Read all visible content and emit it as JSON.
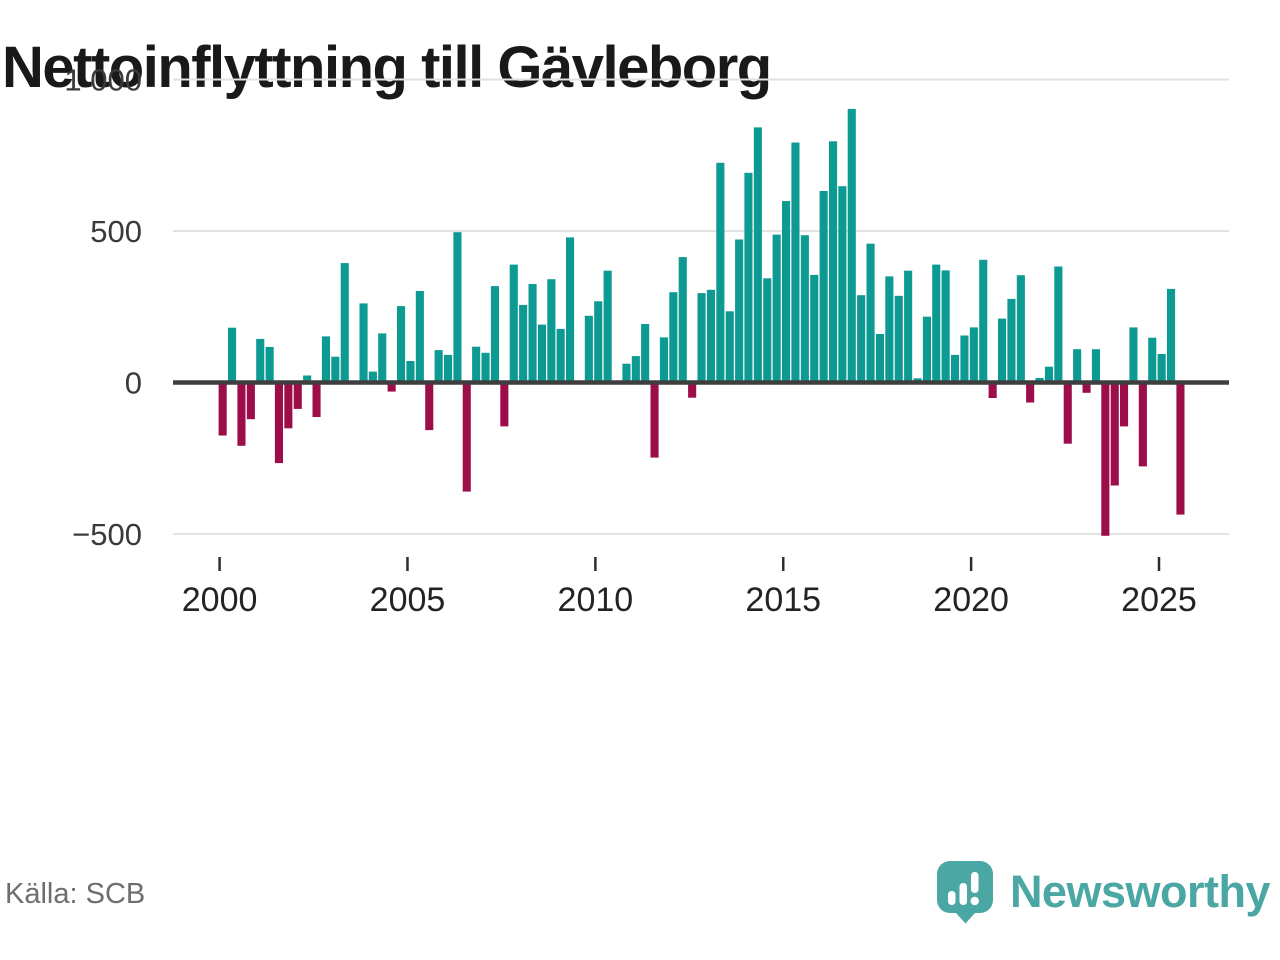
{
  "title": "Nettoinflyttning till Gävleborg",
  "source": "Källa: SCB",
  "brand": {
    "name": "Newsworthy",
    "icon": "speech-bubble-bar-chart-icon",
    "color": "#4ba7a3"
  },
  "colors": {
    "positive_bar": "#0c9a92",
    "negative_bar": "#9c0d49",
    "axis": "#3e3e3e",
    "gridline": "#e2e2e2",
    "tick_text": "#2e2e2e",
    "title_text": "#191919",
    "source_text": "#6d6d72"
  },
  "chart_data": {
    "type": "bar",
    "title": "Nettoinflyttning till Gävleborg",
    "frequency": "quarterly",
    "start": "2000-Q1",
    "end": "2025-Q3",
    "grid": "horizontal",
    "legend": "none",
    "xlabel": "",
    "ylabel": "",
    "ylim": [
      -560,
      1060
    ],
    "y_ticks": [
      1000,
      500,
      0,
      -500
    ],
    "y_tick_labels": [
      "1 000",
      "500",
      "0",
      "−500"
    ],
    "x_tick_years": [
      2000,
      2005,
      2010,
      2015,
      2020,
      2025
    ],
    "x_tick_labels": [
      "2000",
      "2005",
      "2010",
      "2015",
      "2020",
      "2025"
    ],
    "values": [
      -175,
      181,
      -209,
      -121,
      144,
      117,
      -266,
      -151,
      -87,
      23,
      -114,
      152,
      85,
      394,
      0,
      261,
      36,
      162,
      -30,
      252,
      71,
      302,
      -157,
      107,
      91,
      496,
      -360,
      118,
      98,
      318,
      -145,
      389,
      256,
      325,
      191,
      341,
      177,
      479,
      0,
      220,
      268,
      369,
      0,
      62,
      87,
      193,
      -248,
      149,
      298,
      414,
      -50,
      295,
      306,
      725,
      235,
      472,
      692,
      842,
      344,
      488,
      599,
      792,
      486,
      355,
      632,
      796,
      648,
      903,
      288,
      458,
      160,
      350,
      286,
      369,
      14,
      217,
      389,
      370,
      91,
      155,
      182,
      405,
      -51,
      211,
      276,
      354,
      -66,
      15,
      52,
      383,
      -202,
      110,
      -34,
      110,
      -506,
      -340,
      -145,
      182,
      -277,
      148,
      94,
      309,
      -436
    ]
  }
}
